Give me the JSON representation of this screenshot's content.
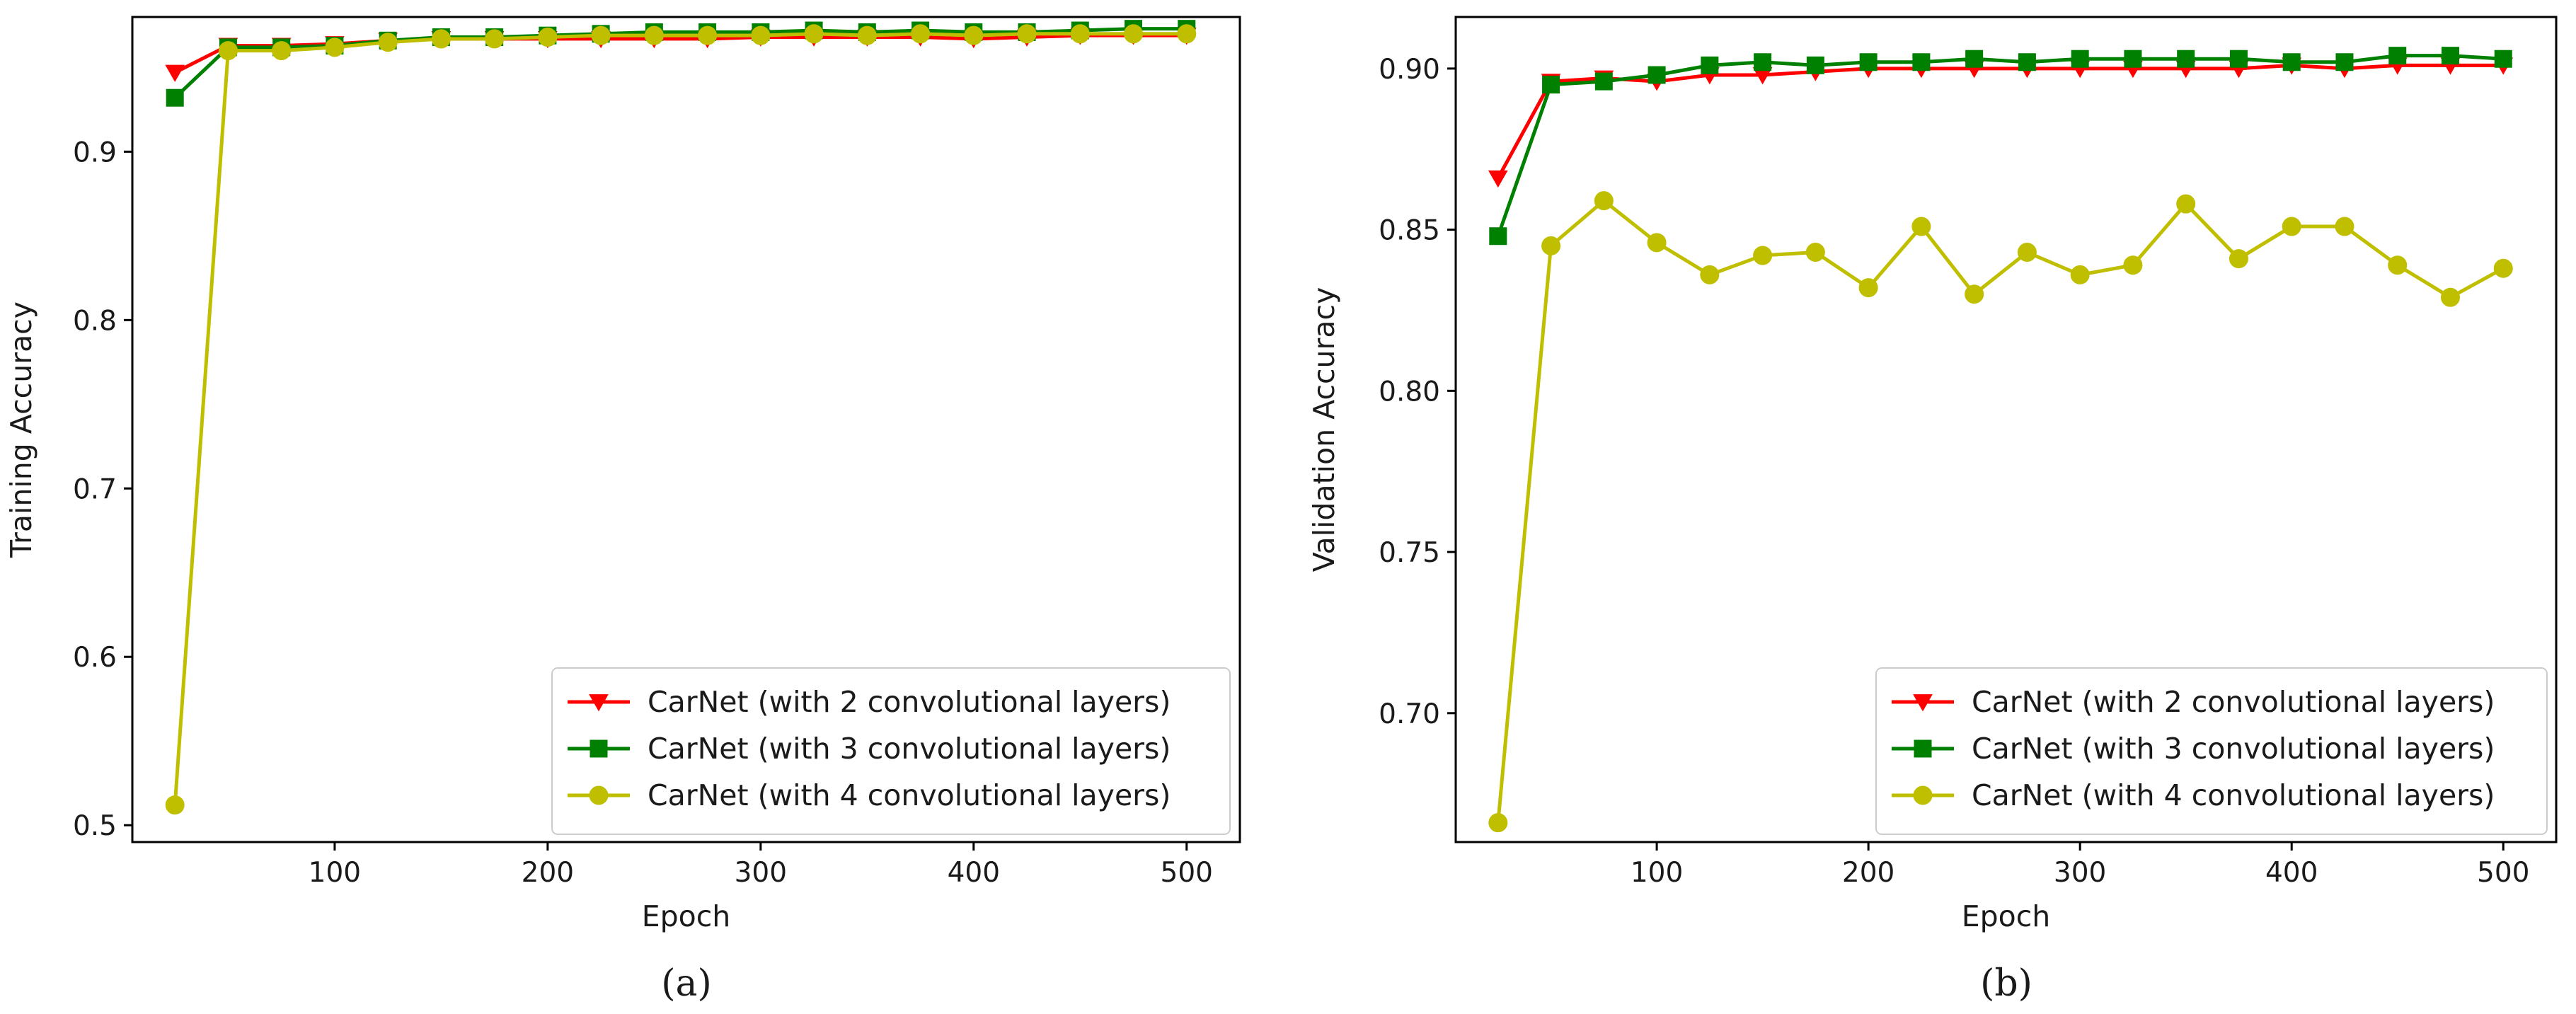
{
  "colors": {
    "series_2_layers": "#ff0000",
    "series_3_layers": "#008000",
    "series_4_layers": "#bfbf00",
    "axis": "#000000",
    "background": "#ffffff"
  },
  "chart_data": [
    {
      "type": "line",
      "panel_caption": "(a)",
      "title": "",
      "xlabel": "Epoch",
      "ylabel": "Training Accuracy",
      "xlim": [
        5,
        525
      ],
      "ylim": [
        0.49,
        0.98
      ],
      "xticks": [
        100,
        200,
        300,
        400,
        500
      ],
      "yticks": [
        0.5,
        0.6,
        0.7,
        0.8,
        0.9
      ],
      "xtick_labels": [
        "100",
        "200",
        "300",
        "400",
        "500"
      ],
      "ytick_labels": [
        "0.5",
        "0.6",
        "0.7",
        "0.8",
        "0.9"
      ],
      "grid": false,
      "legend_position": "lower-right",
      "x": [
        25,
        50,
        75,
        100,
        125,
        150,
        175,
        200,
        225,
        250,
        275,
        300,
        325,
        350,
        375,
        400,
        425,
        450,
        475,
        500
      ],
      "series": [
        {
          "name": "CarNet (with 2 convolutional layers)",
          "marker": "triangle-down",
          "color_key": "series_2_layers",
          "values": [
            0.947,
            0.963,
            0.963,
            0.964,
            0.966,
            0.967,
            0.967,
            0.967,
            0.967,
            0.967,
            0.967,
            0.968,
            0.968,
            0.968,
            0.968,
            0.967,
            0.968,
            0.969,
            0.969,
            0.969
          ]
        },
        {
          "name": "CarNet (with 3 convolutional layers)",
          "marker": "square",
          "color_key": "series_3_layers",
          "values": [
            0.932,
            0.962,
            0.962,
            0.963,
            0.966,
            0.968,
            0.968,
            0.969,
            0.97,
            0.971,
            0.971,
            0.971,
            0.972,
            0.971,
            0.972,
            0.971,
            0.971,
            0.972,
            0.973,
            0.973
          ]
        },
        {
          "name": "CarNet (with 4 convolutional layers)",
          "marker": "circle",
          "color_key": "series_4_layers",
          "values": [
            0.512,
            0.96,
            0.96,
            0.962,
            0.965,
            0.967,
            0.967,
            0.968,
            0.969,
            0.969,
            0.969,
            0.969,
            0.97,
            0.969,
            0.97,
            0.969,
            0.97,
            0.97,
            0.97,
            0.97
          ]
        }
      ]
    },
    {
      "type": "line",
      "panel_caption": "(b)",
      "title": "",
      "xlabel": "Epoch",
      "ylabel": "Validation Accuracy",
      "xlim": [
        5,
        525
      ],
      "ylim": [
        0.66,
        0.916
      ],
      "xticks": [
        100,
        200,
        300,
        400,
        500
      ],
      "yticks": [
        0.7,
        0.75,
        0.8,
        0.85,
        0.9
      ],
      "xtick_labels": [
        "100",
        "200",
        "300",
        "400",
        "500"
      ],
      "ytick_labels": [
        "0.70",
        "0.75",
        "0.80",
        "0.85",
        "0.90"
      ],
      "grid": false,
      "legend_position": "lower-right",
      "x": [
        25,
        50,
        75,
        100,
        125,
        150,
        175,
        200,
        225,
        250,
        275,
        300,
        325,
        350,
        375,
        400,
        425,
        450,
        475,
        500
      ],
      "series": [
        {
          "name": "CarNet (with 2 convolutional layers)",
          "marker": "triangle-down",
          "color_key": "series_2_layers",
          "values": [
            0.866,
            0.896,
            0.897,
            0.896,
            0.898,
            0.898,
            0.899,
            0.9,
            0.9,
            0.9,
            0.9,
            0.9,
            0.9,
            0.9,
            0.9,
            0.901,
            0.9,
            0.901,
            0.901,
            0.901
          ]
        },
        {
          "name": "CarNet (with 3 convolutional layers)",
          "marker": "square",
          "color_key": "series_3_layers",
          "values": [
            0.848,
            0.895,
            0.896,
            0.898,
            0.901,
            0.902,
            0.901,
            0.902,
            0.902,
            0.903,
            0.902,
            0.903,
            0.903,
            0.903,
            0.903,
            0.902,
            0.902,
            0.904,
            0.904,
            0.903
          ]
        },
        {
          "name": "CarNet (with 4 convolutional layers)",
          "marker": "circle",
          "color_key": "series_4_layers",
          "values": [
            0.666,
            0.845,
            0.859,
            0.846,
            0.836,
            0.842,
            0.843,
            0.832,
            0.851,
            0.83,
            0.843,
            0.836,
            0.839,
            0.858,
            0.841,
            0.851,
            0.851,
            0.839,
            0.829,
            0.838
          ]
        }
      ]
    }
  ]
}
